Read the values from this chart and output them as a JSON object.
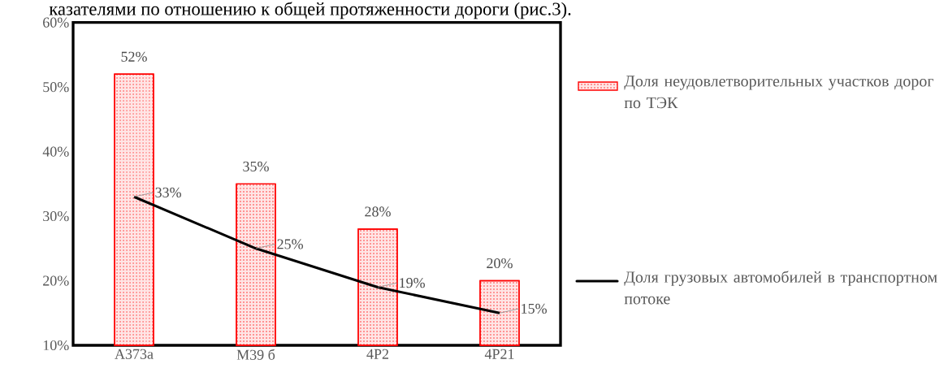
{
  "chart_data": {
    "type": "bar",
    "annotations": [
      "казателями по отношению к общей протяженности дороги (рис.3)."
    ],
    "categories": [
      "А373а",
      "М39 б",
      "4Р2",
      "4Р21"
    ],
    "ylim": [
      10,
      60
    ],
    "yticks": [
      {
        "value": 10,
        "label": "10%"
      },
      {
        "value": 20,
        "label": "20%"
      },
      {
        "value": 30,
        "label": "30%"
      },
      {
        "value": 40,
        "label": "40%"
      },
      {
        "value": 50,
        "label": "50%"
      },
      {
        "value": 60,
        "label": "60%"
      }
    ],
    "legend": "right",
    "series": [
      {
        "name": "Доля неудовлетворительных участков дорог по ТЭК",
        "color": "#ff0000",
        "values": [
          52,
          35,
          28,
          20
        ],
        "value_labels": [
          "52%",
          "35%",
          "28%",
          "20%"
        ]
      },
      {
        "name": "Доля грузовых автомобилей в транспортном потоке",
        "type": "line",
        "color": "#000000",
        "values": [
          33,
          25,
          19,
          15
        ],
        "value_labels": [
          "33%",
          "25%",
          "19%",
          "15%"
        ]
      }
    ]
  }
}
